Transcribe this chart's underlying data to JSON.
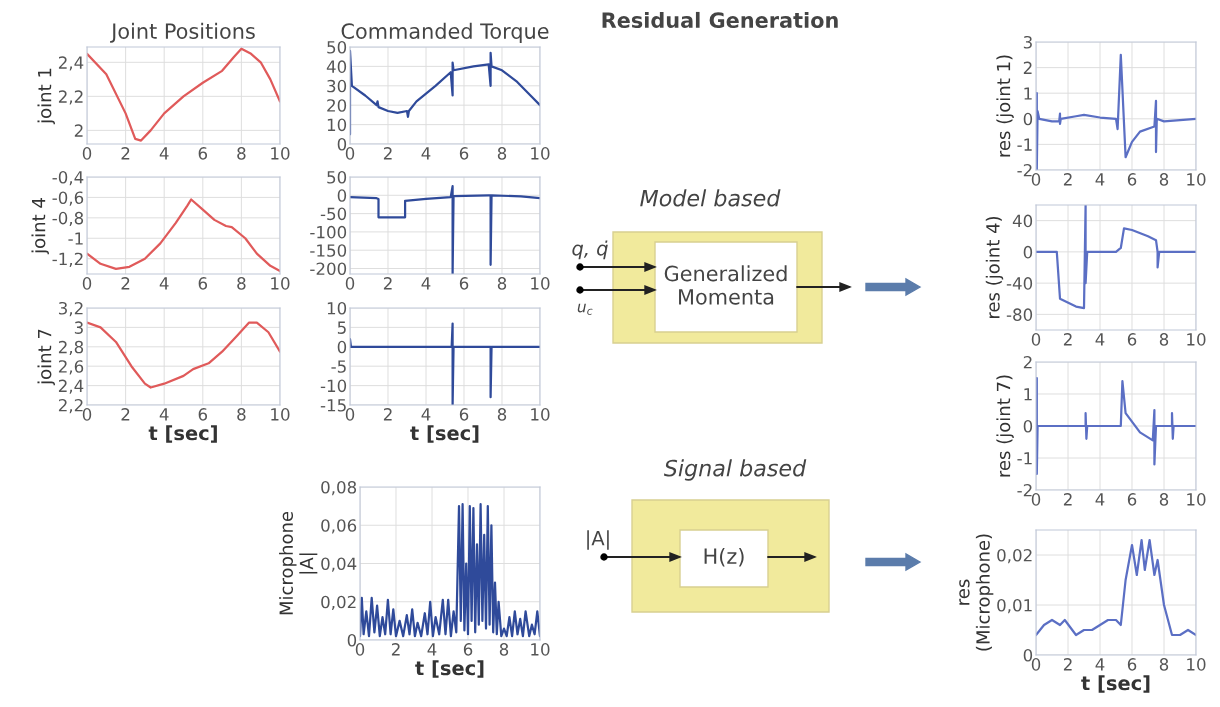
{
  "chart_data": [
    {
      "type": "line",
      "title": "Joint Positions",
      "ylabel": "joint 1",
      "xlim": [
        0,
        10
      ],
      "xticks": [
        0,
        2,
        4,
        6,
        8,
        10
      ],
      "ylim": [
        1.92,
        2.49
      ],
      "yticks": [
        2,
        {
          "value": 2.2,
          "label": "2,2"
        },
        {
          "value": 2.4,
          "label": "2,4"
        }
      ],
      "grid": true,
      "x": [
        0,
        1,
        2,
        2.5,
        2.8,
        3.3,
        4,
        5,
        6,
        7,
        7.6,
        8,
        8.5,
        9,
        9.5,
        10
      ],
      "series": [
        {
          "color": "#e05a5a",
          "values": [
            2.45,
            2.33,
            2.1,
            1.95,
            1.94,
            2.0,
            2.1,
            2.2,
            2.28,
            2.35,
            2.43,
            2.48,
            2.45,
            2.4,
            2.3,
            2.17
          ]
        }
      ]
    },
    {
      "type": "line",
      "ylabel": "joint 4",
      "xlim": [
        0,
        10
      ],
      "xticks": [
        0,
        2,
        4,
        6,
        8,
        10
      ],
      "ylim": [
        -1.35,
        -0.4
      ],
      "yticks": [
        {
          "value": -0.4,
          "label": "-0,4"
        },
        {
          "value": -0.6,
          "label": "-0,6"
        },
        {
          "value": -0.8,
          "label": "-0,8"
        },
        -1,
        {
          "value": -1.2,
          "label": "-1,2"
        }
      ],
      "grid": true,
      "x": [
        0,
        0.7,
        1.5,
        2.2,
        3,
        3.8,
        4.6,
        5.2,
        5.4,
        6,
        6.6,
        7.2,
        7.5,
        8.2,
        8.8,
        9.5,
        10
      ],
      "series": [
        {
          "color": "#e05a5a",
          "values": [
            -1.15,
            -1.25,
            -1.3,
            -1.28,
            -1.2,
            -1.05,
            -0.85,
            -0.68,
            -0.62,
            -0.72,
            -0.82,
            -0.88,
            -0.89,
            -1.0,
            -1.15,
            -1.27,
            -1.32
          ]
        }
      ]
    },
    {
      "type": "line",
      "ylabel": "joint 7",
      "xlabel": "t [sec]",
      "xlim": [
        0,
        10
      ],
      "xticks": [
        0,
        2,
        4,
        6,
        8,
        10
      ],
      "ylim": [
        2.2,
        3.2
      ],
      "yticks": [
        {
          "value": 2.2,
          "label": "2,2"
        },
        {
          "value": 2.4,
          "label": "2,4"
        },
        {
          "value": 2.6,
          "label": "2,6"
        },
        {
          "value": 2.8,
          "label": "2,8"
        },
        3,
        {
          "value": 3.2,
          "label": "3,2"
        }
      ],
      "grid": true,
      "x": [
        0,
        0.7,
        1.5,
        2.3,
        3,
        3.3,
        4,
        5,
        5.5,
        6.3,
        7,
        7.8,
        8.4,
        8.8,
        9.4,
        10
      ],
      "series": [
        {
          "color": "#e05a5a",
          "values": [
            3.05,
            3.0,
            2.85,
            2.6,
            2.42,
            2.38,
            2.42,
            2.5,
            2.57,
            2.63,
            2.75,
            2.92,
            3.05,
            3.05,
            2.95,
            2.75
          ]
        }
      ]
    },
    {
      "type": "line",
      "title": "Commanded Torque",
      "xlim": [
        0,
        10
      ],
      "xticks": [
        0,
        2,
        4,
        6,
        8,
        10
      ],
      "ylim": [
        0,
        50
      ],
      "yticks": [
        0,
        10,
        20,
        30,
        40,
        50
      ],
      "grid": true,
      "x": [
        0,
        0,
        0,
        0.1,
        0.8,
        1.4,
        1.45,
        1.5,
        2,
        2.5,
        3,
        3.05,
        3.1,
        3.5,
        4.5,
        5.3,
        5.4,
        5.4,
        5.45,
        6.5,
        7.3,
        7.4,
        7.4,
        7.45,
        8,
        8.8,
        9.5,
        10
      ],
      "series": [
        {
          "color": "#2f4a9a",
          "values": [
            30,
            5,
            48,
            30,
            25,
            20,
            22,
            19,
            17,
            16,
            17,
            14,
            17,
            22,
            30,
            37,
            25,
            42,
            38,
            40,
            41,
            30,
            47,
            40,
            38,
            32,
            25,
            20
          ]
        }
      ]
    },
    {
      "type": "line",
      "xlim": [
        0,
        10
      ],
      "xticks": [
        0,
        2,
        4,
        6,
        8,
        10
      ],
      "ylim": [
        -215,
        50
      ],
      "yticks": [
        50,
        0,
        -50,
        -100,
        -150,
        -200
      ],
      "grid": true,
      "x": [
        0,
        1.4,
        1.5,
        1.5,
        2.9,
        2.9,
        4,
        5.3,
        5.4,
        5.4,
        5.45,
        7.3,
        7.4,
        7.4,
        7.45,
        9,
        10
      ],
      "series": [
        {
          "color": "#2f4a9a",
          "values": [
            -5,
            -8,
            -10,
            -60,
            -60,
            -15,
            -10,
            -5,
            25,
            -215,
            -2,
            0,
            0,
            -190,
            0,
            -3,
            -8
          ]
        }
      ]
    },
    {
      "type": "line",
      "xlabel": "t [sec]",
      "xlim": [
        0,
        10
      ],
      "xticks": [
        0,
        2,
        4,
        6,
        8,
        10
      ],
      "ylim": [
        -15,
        10
      ],
      "yticks": [
        10,
        5,
        0,
        -5,
        -10,
        -15
      ],
      "grid": true,
      "x": [
        0,
        0,
        0.05,
        5.35,
        5.4,
        5.4,
        5.45,
        7.35,
        7.4,
        7.4,
        7.45,
        10
      ],
      "series": [
        {
          "color": "#2f4a9a",
          "values": [
            0,
            2,
            0,
            0,
            6,
            -15,
            0,
            0,
            0,
            -13,
            0,
            0
          ]
        }
      ]
    },
    {
      "type": "line",
      "ylabel": "Microphone\n|A|",
      "xlabel": "t [sec]",
      "xlim": [
        0,
        10
      ],
      "xticks": [
        0,
        2,
        4,
        6,
        8,
        10
      ],
      "ylim": [
        0,
        0.08
      ],
      "yticks": [
        0,
        {
          "value": 0.02,
          "label": "0,02"
        },
        {
          "value": 0.04,
          "label": "0,04"
        },
        {
          "value": 0.06,
          "label": "0,06"
        },
        {
          "value": 0.08,
          "label": "0,08"
        }
      ],
      "grid": true,
      "x": [
        0,
        0.1,
        0.2,
        0.35,
        0.5,
        0.65,
        0.8,
        0.95,
        1.1,
        1.25,
        1.4,
        1.55,
        1.7,
        1.85,
        2.0,
        2.2,
        2.4,
        2.6,
        2.75,
        2.9,
        3.05,
        3.2,
        3.4,
        3.6,
        3.75,
        3.9,
        4.05,
        4.2,
        4.4,
        4.6,
        4.75,
        4.9,
        5.05,
        5.2,
        5.35,
        5.5,
        5.6,
        5.7,
        5.8,
        5.9,
        6.0,
        6.1,
        6.2,
        6.3,
        6.4,
        6.5,
        6.6,
        6.7,
        6.8,
        6.9,
        7.0,
        7.1,
        7.2,
        7.3,
        7.4,
        7.5,
        7.6,
        7.7,
        7.85,
        8.0,
        8.15,
        8.3,
        8.45,
        8.6,
        8.75,
        8.9,
        9.05,
        9.2,
        9.4,
        9.55,
        9.7,
        9.85,
        10
      ],
      "series": [
        {
          "color": "#2f4a9a",
          "values": [
            0.002,
            0.022,
            0.003,
            0.015,
            0.002,
            0.022,
            0.004,
            0.018,
            0.002,
            0.012,
            0.003,
            0.021,
            0.003,
            0.016,
            0.002,
            0.01,
            0.002,
            0.013,
            0.003,
            0.016,
            0.002,
            0.009,
            0.002,
            0.014,
            0.003,
            0.02,
            0.002,
            0.012,
            0.003,
            0.021,
            0.003,
            0.021,
            0.002,
            0.015,
            0.004,
            0.07,
            0.01,
            0.071,
            0.005,
            0.04,
            0.003,
            0.07,
            0.01,
            0.069,
            0.004,
            0.05,
            0.008,
            0.071,
            0.01,
            0.055,
            0.006,
            0.07,
            0.008,
            0.06,
            0.004,
            0.03,
            0.003,
            0.02,
            0.002,
            0.006,
            0.002,
            0.012,
            0.002,
            0.015,
            0.003,
            0.011,
            0.002,
            0.015,
            0.002,
            0.008,
            0.003,
            0.015,
            0.002
          ]
        }
      ]
    },
    {
      "type": "other",
      "title": "Residual Generation",
      "annotations": [
        "Model based",
        "Generalized\nMomenta",
        "q, q̇",
        "u$_{c}$",
        "Signal based",
        "|A|",
        "H(z)"
      ]
    },
    {
      "type": "line",
      "ylabel": "res (joint 1)",
      "xlim": [
        0,
        10
      ],
      "xticks": [
        0,
        2,
        4,
        6,
        8,
        10
      ],
      "ylim": [
        -2,
        3
      ],
      "yticks": [
        -2,
        -1,
        0,
        1,
        2,
        3
      ],
      "grid": true,
      "x": [
        0,
        0.05,
        0.05,
        0.1,
        0.2,
        1,
        1.45,
        1.5,
        1.5,
        1.55,
        2.5,
        3,
        4,
        5,
        5.1,
        5.3,
        5.6,
        6,
        6.5,
        7.4,
        7.5,
        7.5,
        7.55,
        8,
        9,
        10
      ],
      "series": [
        {
          "color": "#5b6fc4",
          "values": [
            0,
            1,
            -2,
            0.3,
            0,
            -0.1,
            -0.1,
            0.2,
            -0.2,
            0,
            0.1,
            0.15,
            0.05,
            0,
            -0.4,
            2.5,
            -1.5,
            -0.9,
            -0.5,
            -0.3,
            0.7,
            -1.3,
            0,
            -0.1,
            -0.05,
            0
          ]
        }
      ]
    },
    {
      "type": "line",
      "ylabel": "res (joint 4)",
      "xlim": [
        0,
        10
      ],
      "xticks": [
        0,
        2,
        4,
        6,
        8,
        10
      ],
      "ylim": [
        -100,
        60
      ],
      "yticks": [
        40,
        0,
        -40,
        -80
      ],
      "grid": true,
      "x": [
        0,
        1.3,
        1.5,
        2.5,
        3.0,
        3.1,
        3.1,
        3.2,
        5,
        5.3,
        5.5,
        6,
        7,
        7.5,
        7.6,
        7.6,
        7.7,
        10
      ],
      "series": [
        {
          "color": "#5b6fc4",
          "values": [
            0,
            0,
            -60,
            -70,
            -72,
            60,
            -40,
            0,
            0,
            5,
            30,
            28,
            20,
            15,
            0,
            -20,
            0,
            0
          ]
        }
      ]
    },
    {
      "type": "line",
      "ylabel": "res (joint 7)",
      "xlim": [
        0,
        10
      ],
      "xticks": [
        0,
        2,
        4,
        6,
        8,
        10
      ],
      "ylim": [
        -2,
        2
      ],
      "yticks": [
        -2,
        -1,
        0,
        1,
        2
      ],
      "grid": true,
      "x": [
        0,
        0.05,
        0.05,
        0.1,
        3.1,
        3.1,
        3.15,
        3.2,
        5.3,
        5.4,
        5.6,
        6.5,
        7.3,
        7.4,
        7.4,
        7.5,
        8.5,
        8.5,
        8.55,
        8.6,
        10
      ],
      "series": [
        {
          "color": "#5b6fc4",
          "values": [
            0,
            1.5,
            -1.5,
            0,
            0,
            0.4,
            -0.4,
            0,
            0,
            1.4,
            0.4,
            -0.2,
            -0.45,
            0.5,
            -1.2,
            0,
            0,
            0.4,
            -0.4,
            0,
            0
          ]
        }
      ]
    },
    {
      "type": "line",
      "ylabel": "res\n(Microphone)",
      "xlabel": "t [sec]",
      "xlim": [
        0,
        10
      ],
      "xticks": [
        0,
        2,
        4,
        6,
        8,
        10
      ],
      "ylim": [
        0,
        0.025
      ],
      "yticks": [
        0,
        {
          "value": 0.01,
          "label": "0,01"
        },
        {
          "value": 0.02,
          "label": "0,02"
        }
      ],
      "grid": true,
      "x": [
        0,
        0.5,
        1,
        1.5,
        1.8,
        2.5,
        3,
        3.5,
        4,
        4.5,
        5,
        5.3,
        5.6,
        6,
        6.3,
        6.6,
        6.8,
        7.1,
        7.4,
        7.6,
        8,
        8.5,
        9,
        9.5,
        10
      ],
      "series": [
        {
          "color": "#5b6fc4",
          "values": [
            0.004,
            0.006,
            0.007,
            0.006,
            0.007,
            0.004,
            0.005,
            0.005,
            0.006,
            0.007,
            0.007,
            0.006,
            0.015,
            0.022,
            0.016,
            0.023,
            0.017,
            0.023,
            0.016,
            0.019,
            0.01,
            0.004,
            0.004,
            0.005,
            0.004
          ]
        }
      ]
    }
  ]
}
